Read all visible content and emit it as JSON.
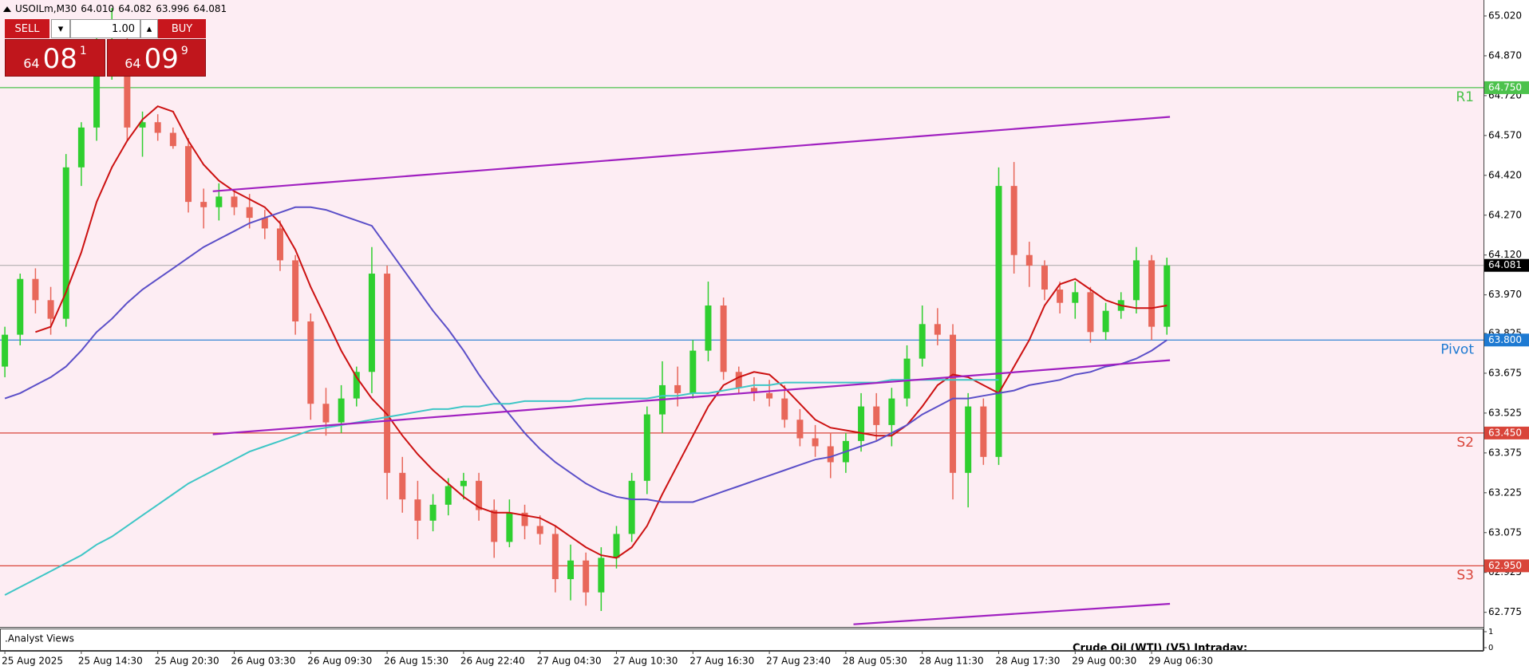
{
  "header": {
    "symbol": "USOILm,M30",
    "ohlc": [
      "64.010",
      "64.082",
      "63.996",
      "64.081"
    ]
  },
  "trade_panel": {
    "sell": "SELL",
    "lot": "1.00",
    "buy": "BUY",
    "sell_price": {
      "big": "64",
      "main": "08",
      "small": "1"
    },
    "buy_price": {
      "big": "64",
      "main": "09",
      "small": "9"
    }
  },
  "chart_data": {
    "type": "candlestick",
    "categories": [
      "25 Aug 2025",
      null,
      null,
      null,
      null,
      "25 Aug 14:30",
      null,
      null,
      null,
      null,
      "25 Aug 20:30",
      null,
      null,
      null,
      null,
      "26 Aug 03:30",
      null,
      null,
      null,
      null,
      "26 Aug 09:30",
      null,
      null,
      null,
      null,
      "26 Aug 15:30",
      null,
      null,
      null,
      null,
      "26 Aug 22:40",
      null,
      null,
      null,
      null,
      "27 Aug 04:30",
      null,
      null,
      null,
      null,
      "27 Aug 10:30",
      null,
      null,
      null,
      null,
      "27 Aug 16:30",
      null,
      null,
      null,
      null,
      "27 Aug 23:40",
      null,
      null,
      null,
      null,
      "28 Aug 05:30",
      null,
      null,
      null,
      null,
      "28 Aug 11:30",
      null,
      null,
      null,
      null,
      "28 Aug 17:30",
      null,
      null,
      null,
      null,
      "29 Aug 00:30",
      null,
      null,
      null,
      null,
      "29 Aug 06:30",
      null
    ],
    "open": [
      63.7,
      63.82,
      64.03,
      63.95,
      63.88,
      64.45,
      64.6,
      64.85,
      64.9,
      64.6,
      64.62,
      64.58,
      64.53,
      64.32,
      64.3,
      64.34,
      64.3,
      64.26,
      64.22,
      64.1,
      63.87,
      63.56,
      63.49,
      63.58,
      63.68,
      64.05,
      63.3,
      63.2,
      63.12,
      63.18,
      63.25,
      63.27,
      63.16,
      63.04,
      63.15,
      63.1,
      63.07,
      62.9,
      62.97,
      62.85,
      62.98,
      63.07,
      63.27,
      63.52,
      63.63,
      63.6,
      63.76,
      63.93,
      63.68,
      63.62,
      63.6,
      63.58,
      63.5,
      63.43,
      63.4,
      63.34,
      63.42,
      63.55,
      63.48,
      63.58,
      63.73,
      63.86,
      63.82,
      63.3,
      63.55,
      63.36,
      64.38,
      64.12,
      64.08,
      63.99,
      63.94,
      63.98,
      63.83,
      63.91,
      63.95,
      64.1,
      63.85
    ],
    "high": [
      63.85,
      64.05,
      64.07,
      64.0,
      64.5,
      64.62,
      65.0,
      65.05,
      64.95,
      64.66,
      64.65,
      64.6,
      64.56,
      64.37,
      64.39,
      64.36,
      64.35,
      64.29,
      64.25,
      64.12,
      63.9,
      63.62,
      63.63,
      63.7,
      64.15,
      64.08,
      63.36,
      63.27,
      63.22,
      63.28,
      63.3,
      63.3,
      63.2,
      63.2,
      63.18,
      63.14,
      63.1,
      63.03,
      63.0,
      63.02,
      63.1,
      63.3,
      63.55,
      63.72,
      63.7,
      63.8,
      64.02,
      63.96,
      63.7,
      63.66,
      63.65,
      63.63,
      63.54,
      63.48,
      63.45,
      63.45,
      63.6,
      63.6,
      63.62,
      63.78,
      63.93,
      63.92,
      63.86,
      63.6,
      63.58,
      64.45,
      64.47,
      64.17,
      64.1,
      64.02,
      64.02,
      64.0,
      63.94,
      63.98,
      64.15,
      64.12,
      64.11
    ],
    "low": [
      63.66,
      63.78,
      63.9,
      63.82,
      63.85,
      64.38,
      64.55,
      64.78,
      64.55,
      64.49,
      64.55,
      64.52,
      64.28,
      64.22,
      64.25,
      64.27,
      64.22,
      64.18,
      64.06,
      63.82,
      63.5,
      63.44,
      63.45,
      63.55,
      63.6,
      63.2,
      63.15,
      63.05,
      63.08,
      63.14,
      63.2,
      63.12,
      62.98,
      63.02,
      63.05,
      63.03,
      62.85,
      62.82,
      62.8,
      62.78,
      62.94,
      63.04,
      63.22,
      63.45,
      63.55,
      63.58,
      63.72,
      63.65,
      63.6,
      63.57,
      63.55,
      63.47,
      63.4,
      63.36,
      63.28,
      63.3,
      63.38,
      63.42,
      63.4,
      63.55,
      63.7,
      63.78,
      63.2,
      63.17,
      63.33,
      63.33,
      64.05,
      64.0,
      63.95,
      63.9,
      63.88,
      63.79,
      63.8,
      63.88,
      63.9,
      63.8,
      63.82
    ],
    "close": [
      63.82,
      64.03,
      63.95,
      63.88,
      64.45,
      64.6,
      64.85,
      64.9,
      64.6,
      64.62,
      64.58,
      64.53,
      64.32,
      64.3,
      64.34,
      64.3,
      64.26,
      64.22,
      64.1,
      63.87,
      63.56,
      63.49,
      63.58,
      63.68,
      64.05,
      63.3,
      63.2,
      63.12,
      63.18,
      63.25,
      63.27,
      63.16,
      63.04,
      63.15,
      63.1,
      63.07,
      62.9,
      62.97,
      62.85,
      62.98,
      63.07,
      63.27,
      63.52,
      63.63,
      63.6,
      63.76,
      63.93,
      63.68,
      63.62,
      63.6,
      63.58,
      63.5,
      63.43,
      63.4,
      63.34,
      63.42,
      63.55,
      63.48,
      63.58,
      63.73,
      63.86,
      63.82,
      63.3,
      63.55,
      63.36,
      64.38,
      64.12,
      64.08,
      63.99,
      63.94,
      63.98,
      63.83,
      63.91,
      63.95,
      64.1,
      63.85,
      64.081
    ],
    "up_color": "#2fcf2f",
    "down_color": "#e8675a",
    "series": [
      {
        "color": "#cc1111",
        "values": [
          null,
          null,
          63.83,
          63.85,
          63.98,
          64.13,
          64.32,
          64.45,
          64.55,
          64.63,
          64.68,
          64.66,
          64.55,
          64.46,
          64.4,
          64.36,
          64.33,
          64.3,
          64.24,
          64.14,
          64.0,
          63.88,
          63.76,
          63.66,
          63.58,
          63.52,
          63.44,
          63.37,
          63.31,
          63.26,
          63.21,
          63.17,
          63.15,
          63.15,
          63.14,
          63.13,
          63.1,
          63.06,
          63.02,
          62.99,
          62.98,
          63.02,
          63.1,
          63.22,
          63.33,
          63.44,
          63.55,
          63.63,
          63.66,
          63.68,
          63.67,
          63.62,
          63.56,
          63.5,
          63.47,
          63.46,
          63.45,
          63.44,
          63.44,
          63.48,
          63.55,
          63.63,
          63.67,
          63.66,
          63.63,
          63.6,
          63.7,
          63.8,
          63.93,
          64.01,
          64.03,
          63.99,
          63.95,
          63.93,
          63.92,
          63.92,
          63.93
        ]
      },
      {
        "color": "#5b4fc8",
        "values": [
          63.58,
          63.6,
          63.63,
          63.66,
          63.7,
          63.76,
          63.83,
          63.88,
          63.94,
          63.99,
          64.03,
          64.07,
          64.11,
          64.15,
          64.18,
          64.21,
          64.24,
          64.26,
          64.28,
          64.3,
          64.3,
          64.29,
          64.27,
          64.25,
          64.23,
          64.15,
          64.07,
          63.99,
          63.91,
          63.84,
          63.76,
          63.67,
          63.59,
          63.52,
          63.45,
          63.39,
          63.34,
          63.3,
          63.26,
          63.23,
          63.21,
          63.2,
          63.2,
          63.19,
          63.19,
          63.19,
          63.21,
          63.23,
          63.25,
          63.27,
          63.29,
          63.31,
          63.33,
          63.35,
          63.36,
          63.38,
          63.4,
          63.42,
          63.45,
          63.48,
          63.52,
          63.55,
          63.58,
          63.58,
          63.59,
          63.6,
          63.61,
          63.63,
          63.64,
          63.65,
          63.67,
          63.68,
          63.7,
          63.71,
          63.73,
          63.76,
          63.8
        ]
      },
      {
        "color": "#3ec6c6",
        "values": [
          62.84,
          62.87,
          62.9,
          62.93,
          62.96,
          62.99,
          63.03,
          63.06,
          63.1,
          63.14,
          63.18,
          63.22,
          63.26,
          63.29,
          63.32,
          63.35,
          63.38,
          63.4,
          63.42,
          63.44,
          63.46,
          63.47,
          63.48,
          63.49,
          63.5,
          63.51,
          63.52,
          63.53,
          63.54,
          63.54,
          63.55,
          63.55,
          63.56,
          63.56,
          63.57,
          63.57,
          63.57,
          63.57,
          63.58,
          63.58,
          63.58,
          63.58,
          63.58,
          63.59,
          63.59,
          63.6,
          63.6,
          63.61,
          63.62,
          63.63,
          63.63,
          63.64,
          63.64,
          63.64,
          63.64,
          63.64,
          63.64,
          63.64,
          63.65,
          63.65,
          63.65,
          63.65,
          63.65,
          63.65,
          63.65,
          63.65,
          null,
          null,
          null,
          null,
          null,
          null,
          null,
          null,
          null,
          null,
          null
        ]
      }
    ],
    "trend_lines": [
      {
        "color": "#a020c0",
        "x": [
          13.6,
          76.2
        ],
        "values": [
          64.36,
          64.64
        ]
      },
      {
        "color": "#a020c0",
        "x": [
          13.6,
          76.2
        ],
        "values": [
          63.445,
          63.724
        ]
      },
      {
        "color": "#a020c0",
        "x": [
          55.5,
          76.2
        ],
        "values": [
          62.73,
          62.807
        ]
      }
    ],
    "levels": [
      {
        "name": "R1",
        "value": 64.75,
        "value_label": "64.750",
        "color": "#4cc24c"
      },
      {
        "name": "Pivot",
        "value": 63.8,
        "value_label": "63.800",
        "color": "#1e7ad2"
      },
      {
        "name": "S2",
        "value": 63.45,
        "value_label": "63.450",
        "color": "#d9453a"
      },
      {
        "name": "S3",
        "value": 62.95,
        "value_label": "62.950",
        "color": "#d9453a"
      }
    ],
    "last_price": 64.081,
    "last_price_color": "#a8a8a8",
    "ylim": [
      62.72,
      65.08
    ],
    "yticks": [
      {
        "value": 65.02,
        "label": "65.020"
      },
      {
        "value": 64.87,
        "label": "64.870"
      },
      {
        "value": 64.72,
        "label": "64.720"
      },
      {
        "value": 64.57,
        "label": "64.570"
      },
      {
        "value": 64.42,
        "label": "64.420"
      },
      {
        "value": 64.27,
        "label": "64.270"
      },
      {
        "value": 64.12,
        "label": "64.120"
      },
      {
        "value": 63.97,
        "label": "63.970"
      },
      63.825,
      63.675,
      63.525,
      63.375,
      63.225,
      63.075,
      62.925,
      62.775
    ],
    "indicator": {
      "title": ".Analyst Views",
      "note": "Crude Oil (WTI) (V5) Intraday:",
      "ylim": [
        0,
        1
      ],
      "yticks": [
        1,
        0
      ]
    }
  }
}
